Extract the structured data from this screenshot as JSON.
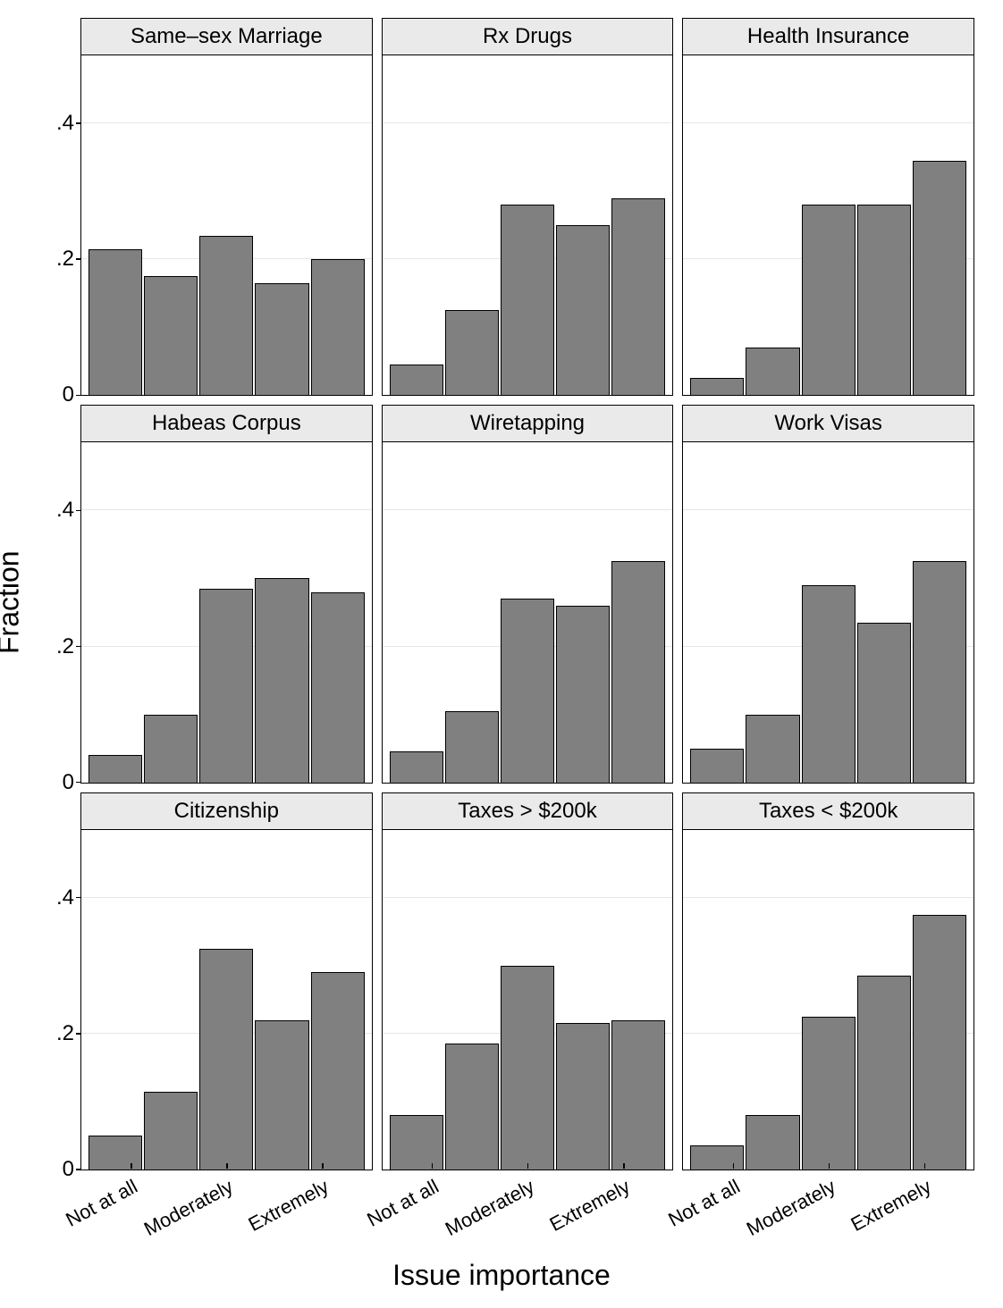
{
  "axis": {
    "ylabel": "Fraction",
    "xlabel": "Issue importance",
    "ylim": [
      0,
      0.5
    ],
    "yticks": [
      0,
      0.2,
      0.4
    ],
    "ytick_labels": [
      "0",
      ".2",
      ".4"
    ],
    "xtick_labels": [
      "Not at all",
      "Moderately",
      "Extremely"
    ],
    "xtick_positions_pct": [
      17,
      50,
      83
    ]
  },
  "style": {
    "bar_color": "#808080",
    "bar_border": "#000000",
    "panel_border": "#000000",
    "title_bg": "#eaeaea",
    "grid_color": "#e6e6e6",
    "background": "#ffffff",
    "title_fontsize": 24,
    "tick_fontsize": 24,
    "xtick_fontsize": 22,
    "axislabel_fontsize": 32,
    "xtick_rotation_deg": -28
  },
  "panels": [
    {
      "title": "Same–sex Marriage",
      "values": [
        0.215,
        0.175,
        0.235,
        0.165,
        0.2
      ]
    },
    {
      "title": "Rx Drugs",
      "values": [
        0.045,
        0.125,
        0.28,
        0.25,
        0.29
      ]
    },
    {
      "title": "Health Insurance",
      "values": [
        0.025,
        0.07,
        0.28,
        0.28,
        0.345
      ]
    },
    {
      "title": "Habeas Corpus",
      "values": [
        0.04,
        0.1,
        0.285,
        0.3,
        0.28
      ]
    },
    {
      "title": "Wiretapping",
      "values": [
        0.045,
        0.105,
        0.27,
        0.26,
        0.325
      ]
    },
    {
      "title": "Work Visas",
      "values": [
        0.05,
        0.1,
        0.29,
        0.235,
        0.325
      ]
    },
    {
      "title": "Citizenship",
      "values": [
        0.05,
        0.115,
        0.325,
        0.22,
        0.29
      ]
    },
    {
      "title": "Taxes > $200k",
      "values": [
        0.08,
        0.185,
        0.3,
        0.215,
        0.22
      ]
    },
    {
      "title": "Taxes < $200k",
      "values": [
        0.035,
        0.08,
        0.225,
        0.285,
        0.375
      ]
    }
  ]
}
